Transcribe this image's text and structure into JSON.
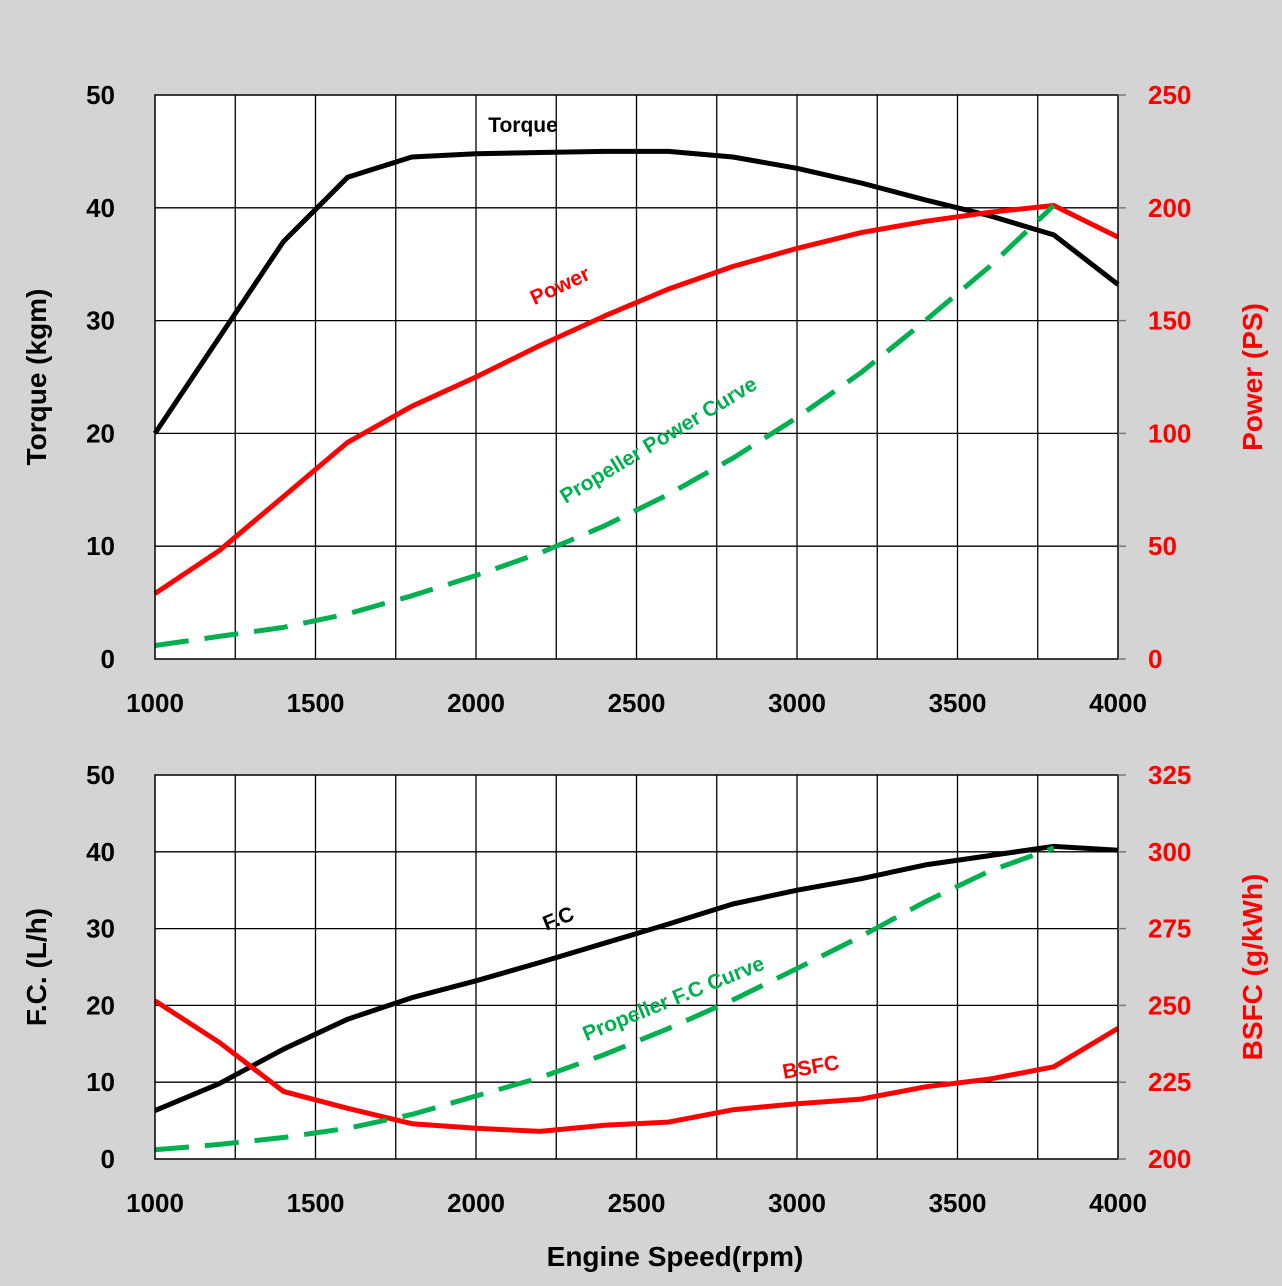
{
  "colors": {
    "background": "#d4d4d4",
    "plot_background": "#ffffff",
    "black": "#000000",
    "red": "#ff0000",
    "green": "#00b050"
  },
  "chart_data": [
    {
      "type": "line",
      "xlabel": "",
      "ylabel_left": "Torque (kgm)",
      "ylabel_right": "Power (PS)",
      "xlim": [
        1000,
        4000
      ],
      "ylim_left": [
        0,
        50
      ],
      "ylim_right": [
        0,
        250
      ],
      "x_ticks": [
        "1000",
        "1500",
        "2000",
        "2500",
        "3000",
        "3500",
        "4000"
      ],
      "y_ticks_left": [
        "0",
        "10",
        "20",
        "30",
        "40",
        "50"
      ],
      "y_ticks_right": [
        "0",
        "50",
        "100",
        "150",
        "200",
        "250"
      ],
      "grid": true,
      "series": [
        {
          "name": "Torque",
          "axis": "left",
          "color": "#000000",
          "dash": "solid",
          "x": [
            1000,
            1200,
            1400,
            1600,
            1800,
            2000,
            2200,
            2400,
            2600,
            2800,
            3000,
            3200,
            3400,
            3600,
            3800,
            4000
          ],
          "y": [
            20,
            28.5,
            37,
            42.7,
            44.5,
            44.8,
            44.9,
            45,
            45,
            44.5,
            43.5,
            42.2,
            40.7,
            39.3,
            37.6,
            33.2
          ]
        },
        {
          "name": "Power",
          "axis": "right",
          "color": "#ff0000",
          "dash": "solid",
          "x": [
            1000,
            1200,
            1400,
            1600,
            1800,
            2000,
            2200,
            2400,
            2600,
            2800,
            3000,
            3200,
            3400,
            3600,
            3800,
            4000
          ],
          "y": [
            29,
            48,
            72,
            96,
            112,
            125,
            139,
            152,
            164,
            174,
            182,
            189,
            194,
            198,
            201,
            187
          ]
        },
        {
          "name": "Propeller Power Curve",
          "axis": "right",
          "color": "#00b050",
          "dash": "dashed",
          "x": [
            1000,
            1200,
            1400,
            1600,
            1800,
            2000,
            2200,
            2400,
            2600,
            2800,
            3000,
            3200,
            3400,
            3600,
            3800
          ],
          "y": [
            6,
            10,
            14,
            20,
            28,
            37,
            47,
            59,
            73,
            89,
            107,
            127,
            150,
            174,
            201
          ]
        }
      ]
    },
    {
      "type": "line",
      "xlabel": "Engine Speed(rpm)",
      "ylabel_left": "F.C. (L/h)",
      "ylabel_right": "BSFC (g/kWh)",
      "xlim": [
        1000,
        4000
      ],
      "ylim_left": [
        0,
        50
      ],
      "ylim_right": [
        200,
        325
      ],
      "x_ticks": [
        "1000",
        "1500",
        "2000",
        "2500",
        "3000",
        "3500",
        "4000"
      ],
      "y_ticks_left": [
        "0",
        "10",
        "20",
        "30",
        "40",
        "50"
      ],
      "y_ticks_right": [
        "200",
        "225",
        "250",
        "275",
        "300",
        "325"
      ],
      "grid": true,
      "series": [
        {
          "name": "F.C",
          "axis": "left",
          "color": "#000000",
          "dash": "solid",
          "x": [
            1000,
            1200,
            1400,
            1600,
            1800,
            2000,
            2200,
            2400,
            2600,
            2800,
            3000,
            3200,
            3400,
            3600,
            3800,
            4000
          ],
          "y": [
            6.3,
            9.8,
            14.3,
            18.2,
            21,
            23.2,
            25.6,
            28.1,
            30.6,
            33.2,
            35,
            36.5,
            38.3,
            39.5,
            40.7,
            40.2
          ]
        },
        {
          "name": "BSFC",
          "axis": "right",
          "color": "#ff0000",
          "dash": "solid",
          "x": [
            1000,
            1200,
            1400,
            1600,
            1800,
            2000,
            2200,
            2400,
            2600,
            2800,
            3000,
            3200,
            3400,
            3600,
            3800,
            4000
          ],
          "y": [
            251.5,
            238,
            222,
            216.5,
            211.5,
            210,
            209,
            211,
            212,
            216,
            218,
            219.5,
            223.5,
            226,
            230,
            242.5
          ]
        },
        {
          "name": "Propeller F.C Curve",
          "axis": "left",
          "color": "#00b050",
          "dash": "dashed",
          "x": [
            1000,
            1200,
            1400,
            1600,
            1800,
            2000,
            2200,
            2400,
            2600,
            2800,
            3000,
            3200,
            3400,
            3600,
            3800
          ],
          "y": [
            1.2,
            1.9,
            2.8,
            4,
            5.8,
            8.2,
            10.6,
            13.6,
            17,
            20.7,
            24.8,
            29,
            33.5,
            37.5,
            40.5
          ]
        }
      ]
    }
  ]
}
